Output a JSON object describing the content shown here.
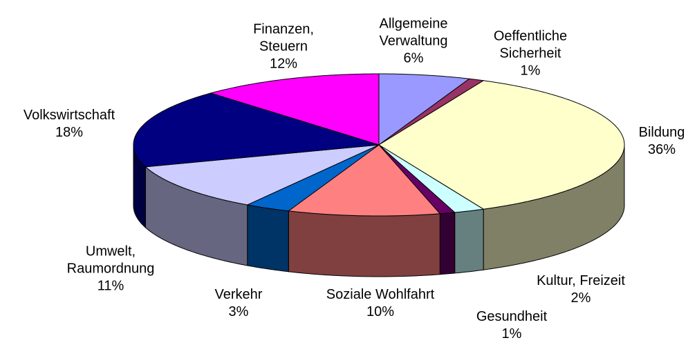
{
  "chart_data": {
    "type": "pie3d",
    "categories": [
      "Allgemeine\nVerwaltung",
      "Oeffentliche\nSicherheit",
      "Bildung",
      "Kultur, Freizeit",
      "Gesundheit",
      "Soziale Wohlfahrt",
      "Verkehr",
      "Umwelt,\nRaumordnung",
      "Volkswirtschaft",
      "Finanzen,\nSteuern"
    ],
    "values": [
      6,
      1,
      36,
      2,
      1,
      10,
      3,
      11,
      18,
      12
    ],
    "value_labels": [
      "6%",
      "1%",
      "36%",
      "2%",
      "1%",
      "10%",
      "3%",
      "11%",
      "18%",
      "12%"
    ],
    "colors": [
      "#9999ff",
      "#993366",
      "#ffffcc",
      "#ccffff",
      "#660066",
      "#ff8080",
      "#0066cc",
      "#ccccff",
      "#000080",
      "#ff00ff"
    ]
  }
}
